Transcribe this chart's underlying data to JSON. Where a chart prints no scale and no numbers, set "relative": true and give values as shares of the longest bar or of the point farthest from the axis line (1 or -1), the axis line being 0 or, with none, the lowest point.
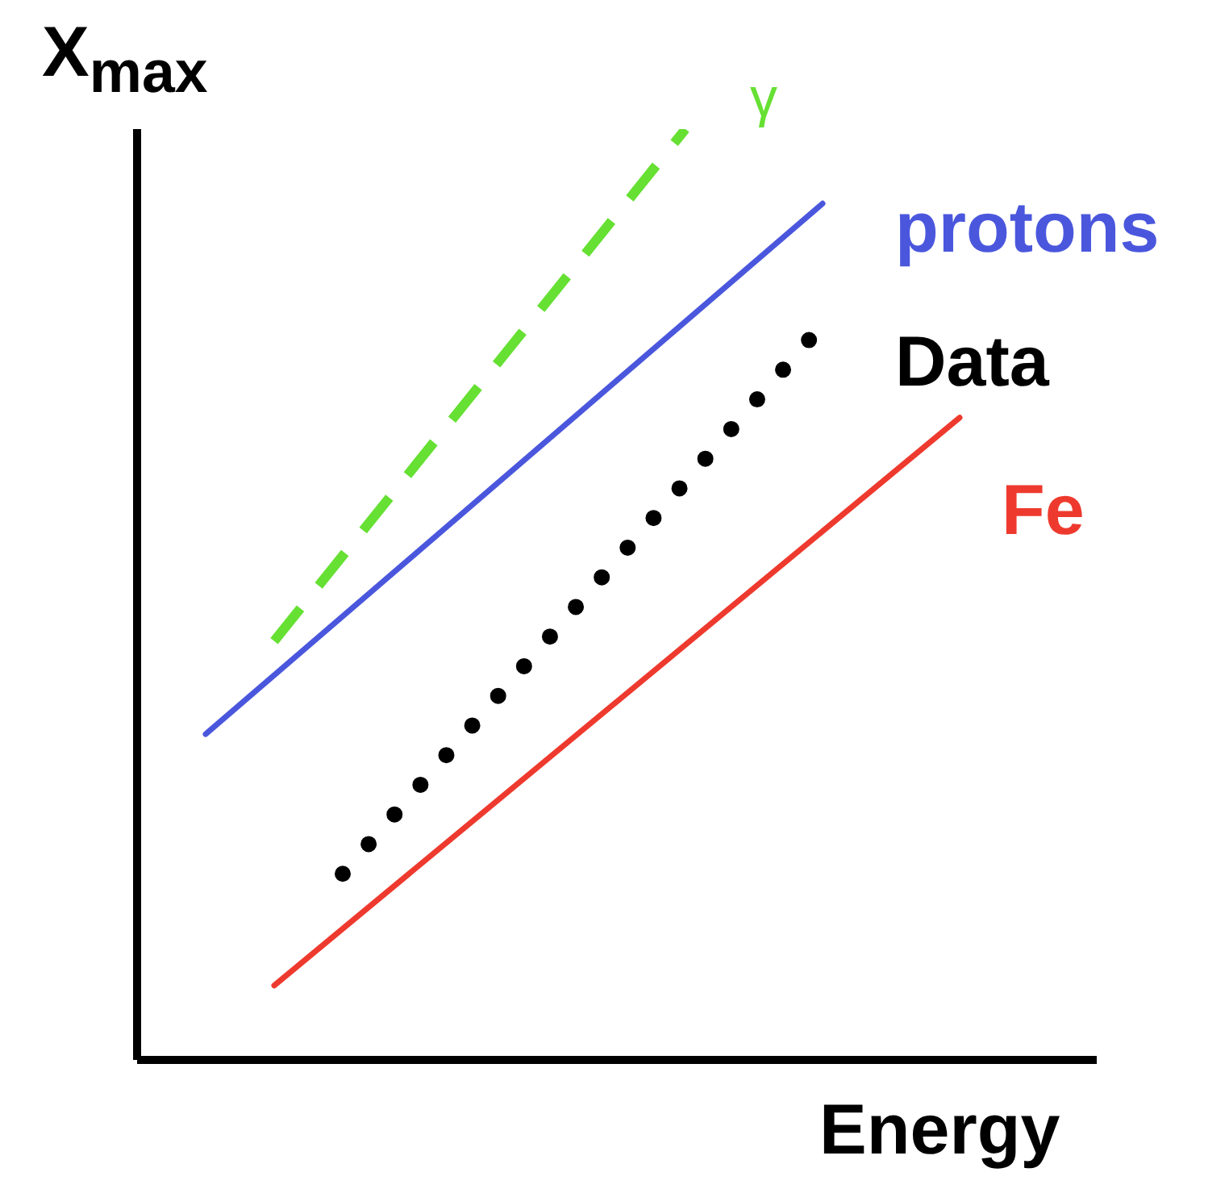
{
  "chart_data": {
    "type": "line",
    "relative": true,
    "xlabel": "Energy",
    "ylabel": "X$_{max}$",
    "tick_labels": false,
    "grid": false,
    "legend": false,
    "marker": "none",
    "categories": [
      null,
      null,
      null,
      null,
      null,
      null,
      null,
      null,
      null,
      null,
      null,
      null,
      null,
      null,
      null
    ],
    "series": [
      {
        "name": "γ",
        "color": "#66e033",
        "line_style": "dashed",
        "values": [
          null,
          null,
          0.45,
          null,
          null,
          null,
          null,
          null,
          1.0,
          null,
          null,
          null,
          null,
          null,
          null
        ]
      },
      {
        "name": "protons",
        "color": "#4a57dd",
        "line_style": "solid",
        "values": [
          null,
          0.35,
          null,
          null,
          null,
          null,
          null,
          null,
          null,
          null,
          0.92,
          null,
          null,
          null,
          null
        ]
      },
      {
        "name": "Data",
        "color": "#000000",
        "line_style": "dotted",
        "values": [
          null,
          null,
          null,
          0.2,
          null,
          null,
          null,
          null,
          null,
          null,
          0.79,
          null,
          null,
          null,
          null
        ]
      },
      {
        "name": "Fe",
        "color": "#ee3a2e",
        "line_style": "solid",
        "values": [
          null,
          null,
          0.08,
          null,
          null,
          null,
          null,
          null,
          null,
          null,
          null,
          null,
          0.69,
          null,
          null
        ]
      }
    ]
  }
}
